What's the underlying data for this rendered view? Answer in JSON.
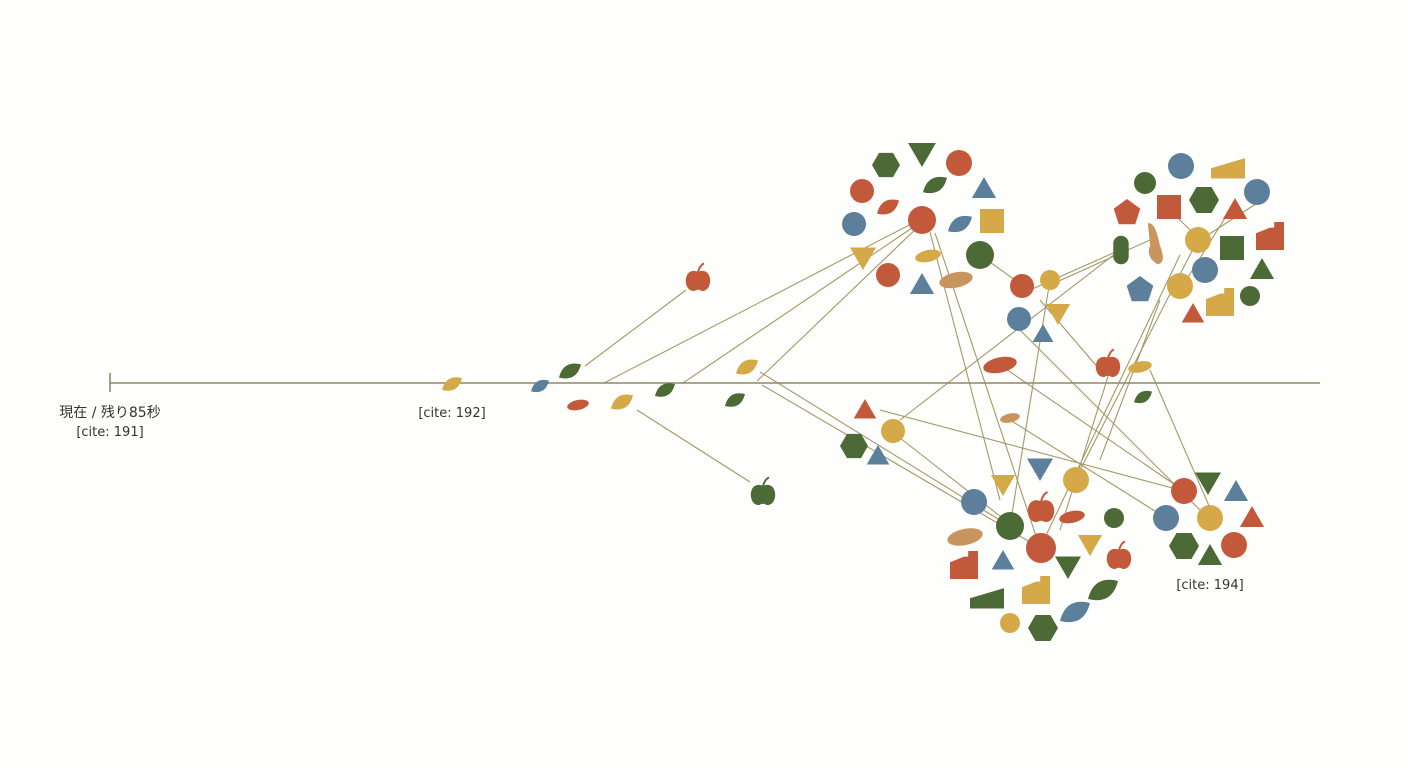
{
  "timeline": {
    "start_label": "現在 / 残り85秒",
    "start_cite": "[cite: 191]",
    "mid_cite": "[cite: 192]",
    "cluster_cite": "[cite: 194]"
  },
  "colors": {
    "red": "#c2593b",
    "green": "#4b6a36",
    "blue": "#5c7f9b",
    "yellow": "#d5a947",
    "tan": "#c9955e",
    "line": "#a29867"
  }
}
